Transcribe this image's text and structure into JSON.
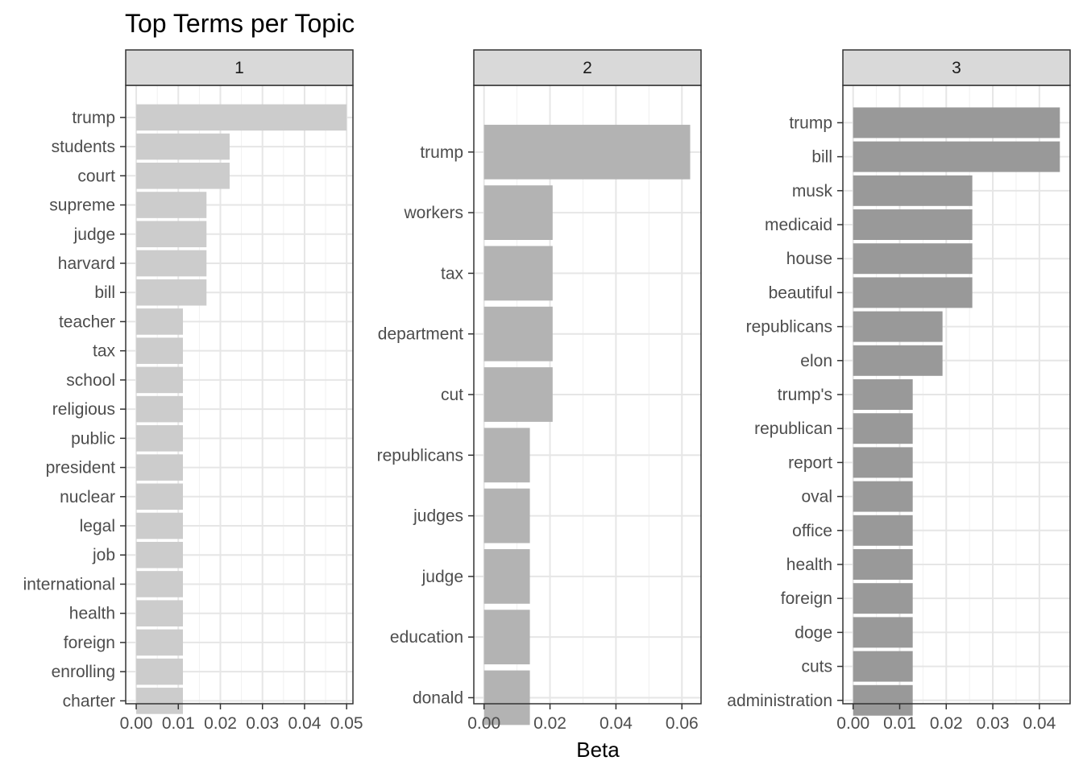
{
  "chart_data": {
    "type": "bar",
    "orientation": "horizontal",
    "title": "Top Terms per Topic",
    "xlabel": "Beta",
    "ylabel": "",
    "grid": true,
    "legend": "none",
    "panels": [
      {
        "strip": "1",
        "color": "#cccccc",
        "xlim": [
          -0.0025,
          0.0515
        ],
        "xticks": [
          0,
          0.01,
          0.02,
          0.03,
          0.04,
          0.05
        ],
        "xtick_labels": [
          "0.00",
          "0.01",
          "0.02",
          "0.03",
          "0.04",
          "0.05"
        ],
        "categories": [
          "trump",
          "students",
          "court",
          "supreme",
          "judge",
          "harvard",
          "bill",
          "teacher",
          "tax",
          "school",
          "religious",
          "public",
          "president",
          "nuclear",
          "legal",
          "job",
          "international",
          "health",
          "foreign",
          "enrolling",
          "charter"
        ],
        "values": [
          0.05,
          0.0222,
          0.0222,
          0.0167,
          0.0167,
          0.0167,
          0.0167,
          0.0111,
          0.0111,
          0.0111,
          0.0111,
          0.0111,
          0.0111,
          0.0111,
          0.0111,
          0.0111,
          0.0111,
          0.0111,
          0.0111,
          0.0111,
          0.0111
        ]
      },
      {
        "strip": "2",
        "color": "#b3b3b3",
        "xlim": [
          -0.0031,
          0.0658
        ],
        "xticks": [
          0,
          0.02,
          0.04,
          0.06
        ],
        "xtick_labels": [
          "0.00",
          "0.02",
          "0.04",
          "0.06"
        ],
        "categories": [
          "trump",
          "workers",
          "tax",
          "department",
          "cut",
          "republicans",
          "judges",
          "judge",
          "education",
          "donald"
        ],
        "values": [
          0.0625,
          0.0208,
          0.0208,
          0.0208,
          0.0208,
          0.0139,
          0.0139,
          0.0139,
          0.0139,
          0.0139
        ]
      },
      {
        "strip": "3",
        "color": "#999999",
        "xlim": [
          -0.0022,
          0.0466
        ],
        "xticks": [
          0,
          0.01,
          0.02,
          0.03,
          0.04
        ],
        "xtick_labels": [
          "0.00",
          "0.01",
          "0.02",
          "0.03",
          "0.04"
        ],
        "categories": [
          "trump",
          "bill",
          "musk",
          "medicaid",
          "house",
          "beautiful",
          "republicans",
          "elon",
          "trump's",
          "republican",
          "report",
          "oval",
          "office",
          "health",
          "foreign",
          "doge",
          "cuts",
          "administration"
        ],
        "values": [
          0.0444,
          0.0444,
          0.0256,
          0.0256,
          0.0256,
          0.0256,
          0.0192,
          0.0192,
          0.0128,
          0.0128,
          0.0128,
          0.0128,
          0.0128,
          0.0128,
          0.0128,
          0.0128,
          0.0128,
          0.0128
        ]
      }
    ]
  }
}
